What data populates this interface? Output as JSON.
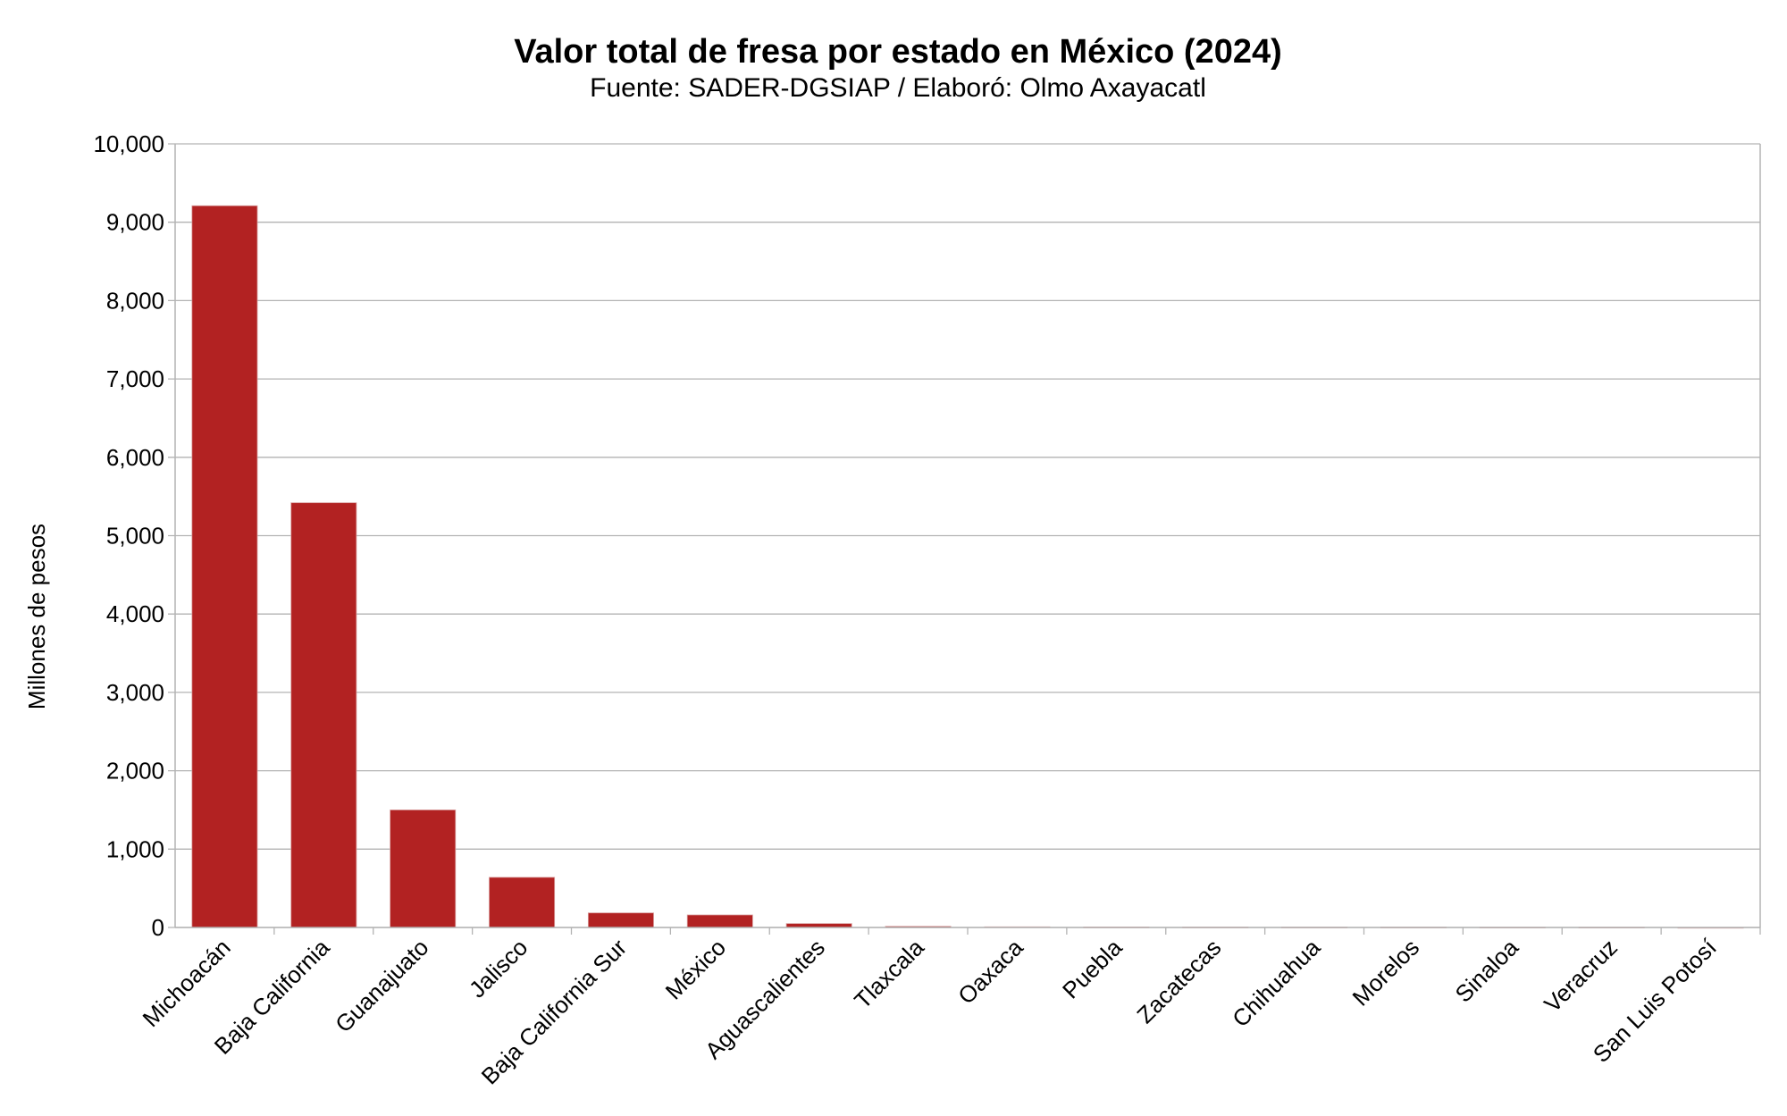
{
  "chart_data": {
    "type": "bar",
    "title": "Valor total de fresa por estado en México (2024)",
    "subtitle": "Fuente: SADER-DGSIAP / Elaboró: Olmo Axayacatl",
    "xlabel": "",
    "ylabel": "Millones de pesos",
    "ylim": [
      0,
      10000
    ],
    "yticks": [
      "0",
      "1,000",
      "2,000",
      "3,000",
      "4,000",
      "5,000",
      "6,000",
      "7,000",
      "8,000",
      "9,000",
      "10,000"
    ],
    "grid": true,
    "bar_color": "#b22222",
    "categories": [
      "Michoacán",
      "Baja California",
      "Guanajuato",
      "Jalisco",
      "Baja California Sur",
      "México",
      "Aguascalientes",
      "Tlaxcala",
      "Oaxaca",
      "Puebla",
      "Zacatecas",
      "Chihuahua",
      "Morelos",
      "Sinaloa",
      "Veracruz",
      "San Luis Potosí"
    ],
    "values": [
      9210,
      5420,
      1500,
      640,
      186,
      160,
      50,
      15,
      8,
      6,
      5,
      4,
      4,
      3,
      3,
      0.5
    ]
  }
}
